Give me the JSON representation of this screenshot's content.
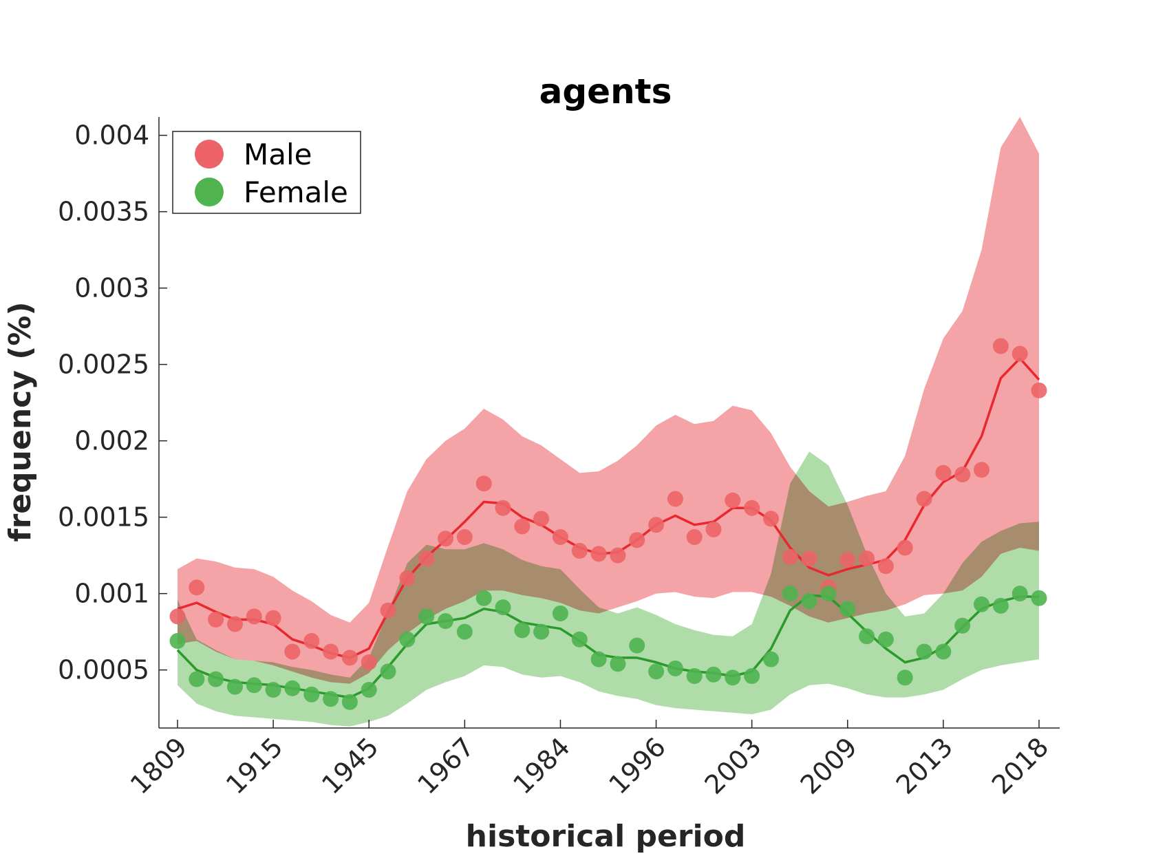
{
  "chart_data": {
    "type": "line",
    "title": "agents",
    "xlabel": "historical period",
    "ylabel": "frequency (%)",
    "x_tick_labels": [
      "1809",
      "1915",
      "1945",
      "1967",
      "1984",
      "1996",
      "2003",
      "2009",
      "2013",
      "2018"
    ],
    "y_ticks": [
      0.0005,
      0.001,
      0.0015,
      0.002,
      0.0025,
      0.003,
      0.0035,
      0.004
    ],
    "y_tick_labels": [
      "0.0005",
      "0.001",
      "0.0015",
      "0.002",
      "0.0025",
      "0.003",
      "0.0035",
      "0.004"
    ],
    "ylim": [
      0.00012,
      0.00412
    ],
    "grid": false,
    "legend_position": "top-left",
    "series": [
      {
        "name": "Male",
        "color": "#e8282e",
        "marker_color": "#ec6467",
        "band_color": "#f4a3a6",
        "points": [
          0.00085,
          0.00104,
          0.00083,
          0.0008,
          0.00085,
          0.00084,
          0.00062,
          0.00069,
          0.00062,
          0.00058,
          0.00055,
          0.00089,
          0.0011,
          0.00123,
          0.00136,
          0.00137,
          0.00172,
          0.00156,
          0.00144,
          0.00149,
          0.00137,
          0.00128,
          0.00126,
          0.00125,
          0.00135,
          0.00145,
          0.00162,
          0.00137,
          0.00142,
          0.00161,
          0.00156,
          0.00149,
          0.00124,
          0.00123,
          0.00104,
          0.00122,
          0.00123,
          0.00118,
          0.0013,
          0.00162,
          0.00179,
          0.00178,
          0.00181,
          0.00262,
          0.00257,
          0.00233
        ],
        "trend": [
          0.0009,
          0.00094,
          0.00088,
          0.00083,
          0.00083,
          0.0008,
          0.0007,
          0.00066,
          0.00061,
          0.00058,
          0.00064,
          0.00088,
          0.0011,
          0.00124,
          0.00135,
          0.00147,
          0.0016,
          0.00159,
          0.0015,
          0.00145,
          0.00137,
          0.0013,
          0.00126,
          0.00127,
          0.00135,
          0.00145,
          0.00151,
          0.00145,
          0.00147,
          0.00156,
          0.00156,
          0.00148,
          0.0013,
          0.00117,
          0.00112,
          0.00116,
          0.00119,
          0.00122,
          0.00135,
          0.00158,
          0.00173,
          0.0018,
          0.00203,
          0.00241,
          0.00254,
          0.0024
        ],
        "upper": [
          0.00116,
          0.00123,
          0.00121,
          0.00117,
          0.00116,
          0.00111,
          0.00102,
          0.00095,
          0.00086,
          0.00081,
          0.00094,
          0.00131,
          0.00167,
          0.00188,
          0.002,
          0.00208,
          0.00221,
          0.00214,
          0.00203,
          0.00197,
          0.00188,
          0.00179,
          0.0018,
          0.00187,
          0.00197,
          0.0021,
          0.00217,
          0.00211,
          0.00213,
          0.00223,
          0.0022,
          0.00205,
          0.00183,
          0.00167,
          0.00157,
          0.0016,
          0.00164,
          0.00167,
          0.0019,
          0.00234,
          0.00267,
          0.00285,
          0.00325,
          0.00392,
          0.00412,
          0.00388
        ],
        "lower": [
          0.00067,
          0.00069,
          0.00062,
          0.00057,
          0.00056,
          0.00053,
          0.00049,
          0.00045,
          0.00042,
          0.00041,
          0.00048,
          0.00063,
          0.00074,
          0.00083,
          0.0009,
          0.00095,
          0.00102,
          0.00102,
          0.00099,
          0.00097,
          0.00094,
          0.00089,
          0.00087,
          0.00091,
          0.00095,
          0.001,
          0.00101,
          0.00098,
          0.00097,
          0.00101,
          0.00101,
          0.00098,
          0.00092,
          0.00085,
          0.00081,
          0.00084,
          0.00087,
          0.00089,
          0.00093,
          0.00099,
          0.001,
          0.00102,
          0.00111,
          0.00126,
          0.0013,
          0.00128
        ]
      },
      {
        "name": "Female",
        "color": "#2a9a2a",
        "marker_color": "#4fb34f",
        "band_color": "#a6d8a0",
        "points": [
          0.00069,
          0.00044,
          0.00044,
          0.00039,
          0.0004,
          0.00037,
          0.00038,
          0.00034,
          0.00031,
          0.00029,
          0.00037,
          0.00049,
          0.0007,
          0.00085,
          0.00082,
          0.00075,
          0.00097,
          0.00091,
          0.00076,
          0.00075,
          0.00087,
          0.0007,
          0.00057,
          0.00054,
          0.00066,
          0.00049,
          0.00051,
          0.00046,
          0.00047,
          0.00045,
          0.00046,
          0.00057,
          0.001,
          0.00095,
          0.001,
          0.0009,
          0.00072,
          0.0007,
          0.00045,
          0.00062,
          0.00062,
          0.00079,
          0.00093,
          0.00092,
          0.001,
          0.00097
        ],
        "trend": [
          0.00063,
          0.0005,
          0.00045,
          0.00042,
          0.00041,
          0.0004,
          0.00038,
          0.00036,
          0.00034,
          0.00032,
          0.00038,
          0.00052,
          0.00067,
          0.0008,
          0.00082,
          0.00084,
          0.0009,
          0.00088,
          0.00081,
          0.00079,
          0.00077,
          0.00069,
          0.0006,
          0.00058,
          0.00058,
          0.00055,
          0.00051,
          0.00049,
          0.00048,
          0.00046,
          0.00049,
          0.00064,
          0.00089,
          0.00099,
          0.00098,
          0.00087,
          0.00075,
          0.00064,
          0.00055,
          0.00058,
          0.00065,
          0.00078,
          0.0009,
          0.00095,
          0.00098,
          0.00098
        ],
        "upper": [
          0.00096,
          0.0007,
          0.00063,
          0.00057,
          0.00056,
          0.00055,
          0.00052,
          0.0005,
          0.00047,
          0.00045,
          0.00058,
          0.00088,
          0.0012,
          0.00132,
          0.00129,
          0.00129,
          0.00133,
          0.00129,
          0.00122,
          0.00118,
          0.00116,
          0.00103,
          0.00091,
          0.00087,
          0.00091,
          0.00086,
          0.0008,
          0.00076,
          0.00073,
          0.00072,
          0.0008,
          0.00113,
          0.00172,
          0.00193,
          0.00184,
          0.00158,
          0.00126,
          0.001,
          0.00085,
          0.00087,
          0.001,
          0.0012,
          0.00134,
          0.00141,
          0.00146,
          0.00147
        ],
        "lower": [
          0.0004,
          0.00028,
          0.00023,
          0.0002,
          0.00019,
          0.00018,
          0.00017,
          0.00016,
          0.00014,
          0.00013,
          0.00016,
          0.0002,
          0.00028,
          0.00037,
          0.00042,
          0.00046,
          0.00053,
          0.00052,
          0.00047,
          0.00045,
          0.00046,
          0.00042,
          0.00036,
          0.00033,
          0.00031,
          0.00027,
          0.00025,
          0.00024,
          0.00023,
          0.00022,
          0.00021,
          0.00024,
          0.00034,
          0.0004,
          0.00041,
          0.00038,
          0.00034,
          0.00032,
          0.00032,
          0.00034,
          0.00037,
          0.00044,
          0.0005,
          0.00053,
          0.00055,
          0.00057
        ]
      }
    ]
  }
}
